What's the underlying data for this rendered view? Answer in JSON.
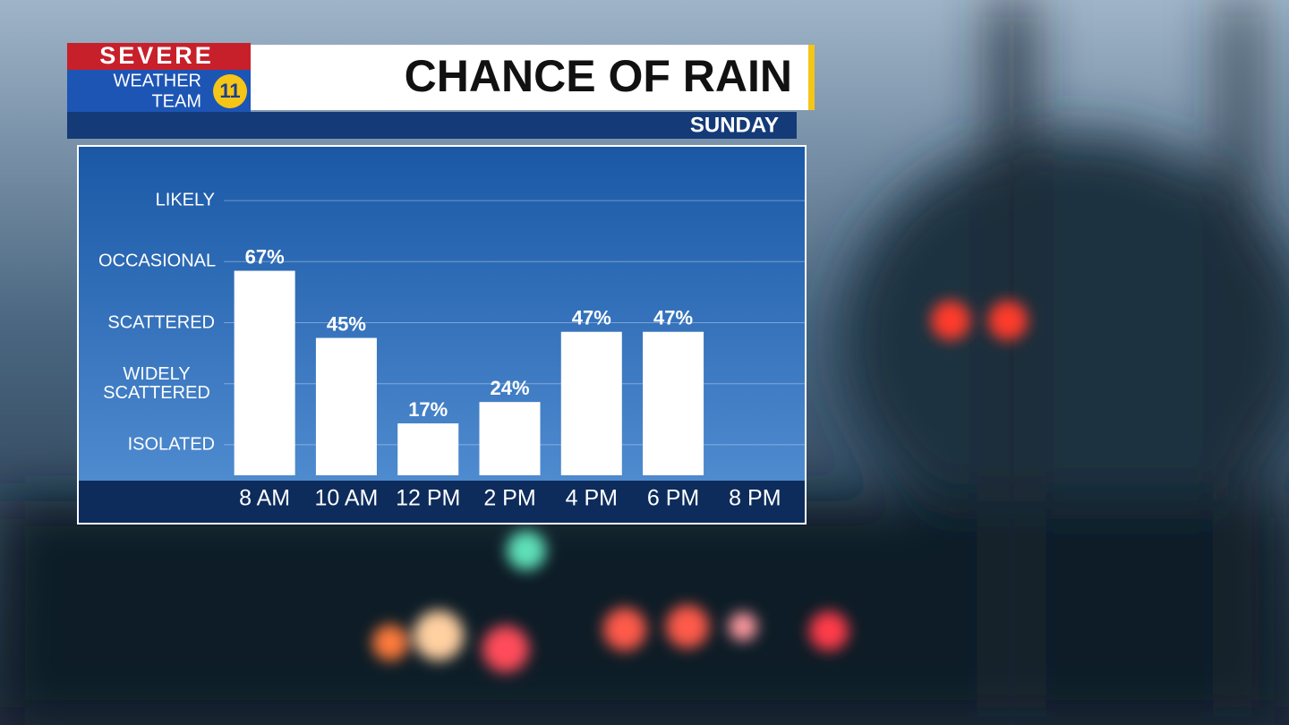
{
  "logo": {
    "line1": "SEVERE",
    "line2": "WEATHER",
    "line3": "TEAM",
    "badge": "11"
  },
  "chart_data": {
    "type": "bar",
    "title": "CHANCE OF RAIN",
    "subtitle": "SUNDAY",
    "categories": [
      "8 AM",
      "10 AM",
      "12 PM",
      "2 PM",
      "4 PM",
      "6 PM",
      "8 PM"
    ],
    "values": [
      67,
      45,
      17,
      24,
      47,
      47,
      null
    ],
    "value_labels": [
      "67%",
      "45%",
      "17%",
      "24%",
      "47%",
      "47%",
      null
    ],
    "color": "#ffffff",
    "ylim": [
      0,
      100
    ],
    "yticks": [
      {
        "value": 10,
        "label": "ISOLATED"
      },
      {
        "value": 30,
        "label": "WIDELY SCATTERED"
      },
      {
        "value": 50,
        "label": "SCATTERED"
      },
      {
        "value": 70,
        "label": "OCCASIONAL"
      },
      {
        "value": 90,
        "label": "LIKELY"
      }
    ],
    "grid": true
  }
}
